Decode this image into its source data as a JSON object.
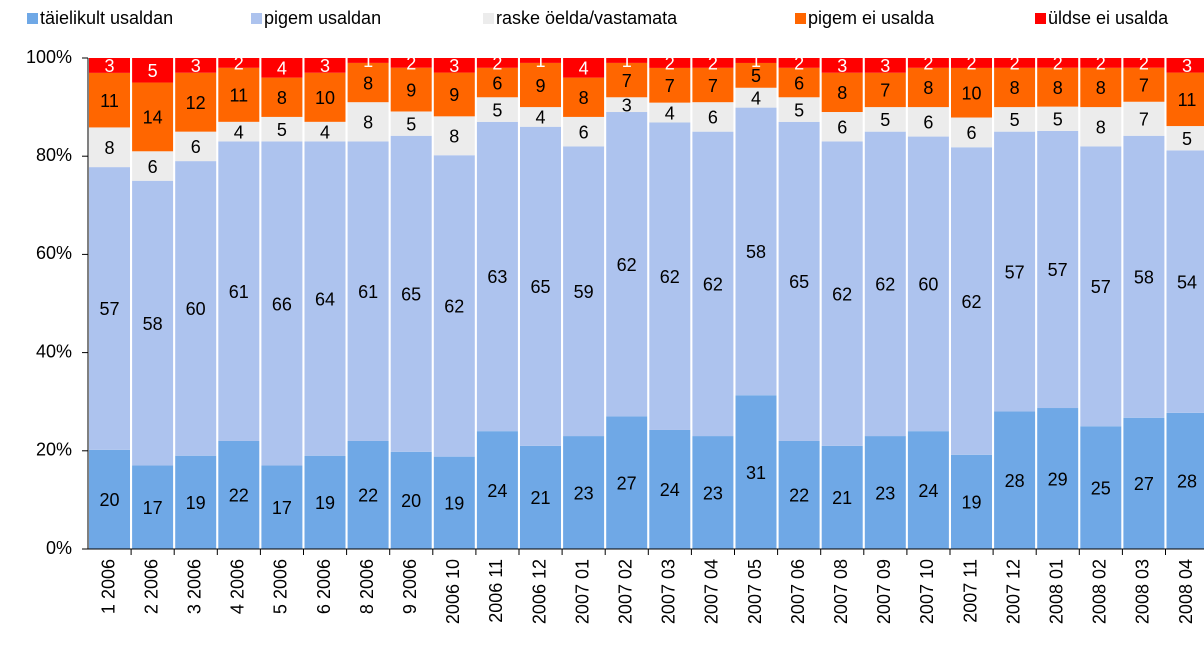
{
  "chart_data": {
    "type": "bar",
    "stacking": "percent",
    "categories": [
      "1 2006",
      "2 2006",
      "3 2006",
      "4 2006",
      "5 2006",
      "6 2006",
      "8 2006",
      "9 2006",
      "2006 10",
      "2006 11",
      "2006 12",
      "2007 01",
      "2007 02",
      "2007 03",
      "2007 04",
      "2007 05",
      "2007 06",
      "2007 08",
      "2007 09",
      "2007 10",
      "2007 11",
      "2007 12",
      "2008 01",
      "2008 02",
      "2008 03",
      "2008 04"
    ],
    "series": [
      {
        "name": "täielikult usaldan",
        "color": "#6fa8e6",
        "label_color": "#000000",
        "values": [
          20,
          17,
          19,
          22,
          17,
          19,
          22,
          20,
          19,
          24,
          21,
          23,
          27,
          24,
          23,
          31,
          22,
          21,
          23,
          24,
          19,
          28,
          29,
          25,
          27,
          28
        ]
      },
      {
        "name": "pigem usaldan",
        "color": "#adc3ee",
        "label_color": "#000000",
        "values": [
          57,
          58,
          60,
          61,
          66,
          64,
          61,
          65,
          62,
          63,
          65,
          59,
          62,
          62,
          62,
          58,
          65,
          62,
          62,
          60,
          62,
          57,
          57,
          57,
          58,
          54
        ]
      },
      {
        "name": "raske öelda/vastamata",
        "color": "#ececec",
        "label_color": "#000000",
        "values": [
          8,
          6,
          6,
          4,
          5,
          4,
          8,
          5,
          8,
          5,
          4,
          6,
          3,
          4,
          6,
          4,
          5,
          6,
          5,
          6,
          6,
          5,
          5,
          8,
          7,
          5
        ]
      },
      {
        "name": "pigem ei usalda",
        "color": "#ff6600",
        "label_color": "#000000",
        "values": [
          11,
          14,
          12,
          11,
          8,
          10,
          8,
          9,
          9,
          6,
          9,
          8,
          7,
          7,
          7,
          5,
          6,
          8,
          7,
          8,
          10,
          8,
          8,
          8,
          7,
          11
        ]
      },
      {
        "name": "üldse ei usalda",
        "color": "#ff0000",
        "label_color": "#ffffff",
        "values": [
          3,
          5,
          3,
          2,
          4,
          3,
          1,
          2,
          3,
          2,
          1,
          4,
          1,
          2,
          2,
          1,
          2,
          3,
          3,
          2,
          2,
          2,
          2,
          2,
          2,
          3
        ]
      }
    ],
    "ylim": [
      0,
      100
    ],
    "yticks": [
      {
        "value": 0,
        "label": "0%"
      },
      {
        "value": 20,
        "label": "20%"
      },
      {
        "value": 40,
        "label": "40%"
      },
      {
        "value": 60,
        "label": "60%"
      },
      {
        "value": 80,
        "label": "80%"
      },
      {
        "value": 100,
        "label": "100%"
      }
    ],
    "legend": "top",
    "grid": false
  }
}
